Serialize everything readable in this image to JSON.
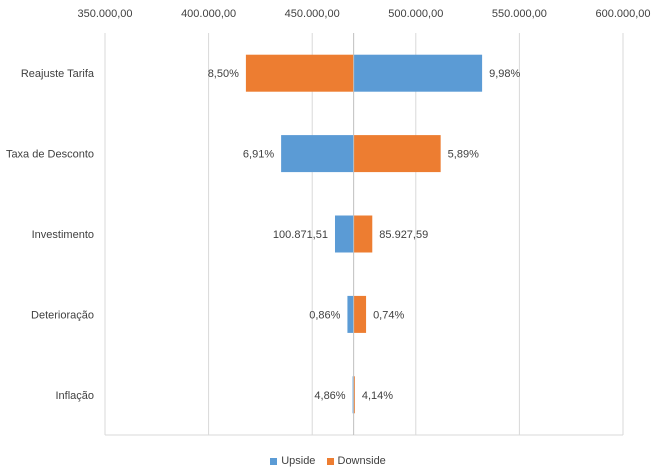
{
  "chart_data": {
    "type": "bar",
    "orientation": "horizontal",
    "subtype": "tornado",
    "base_value": 470000,
    "xlim": [
      350000,
      600000
    ],
    "x_ticks": [
      350000,
      400000,
      450000,
      500000,
      550000,
      600000
    ],
    "x_tick_labels": [
      "350.000,00",
      "400.000,00",
      "450.000,00",
      "500.000,00",
      "550.000,00",
      "600.000,00"
    ],
    "x_axis_position": "top",
    "grid": true,
    "legend_position": "bottom",
    "categories": [
      "Reajuste Tarifa",
      "Taxa de Desconto",
      "Investimento",
      "Deterioração",
      "Inflação"
    ],
    "series": [
      {
        "name": "Upside",
        "color": "#5B9BD5",
        "values": [
          532000,
          435000,
          461000,
          467000,
          469500
        ],
        "data_labels": [
          "9,98%",
          "6,91%",
          "100.871,51",
          "0,86%",
          "4,86%"
        ]
      },
      {
        "name": "Downside",
        "color": "#ED7D31",
        "values": [
          418000,
          512000,
          479000,
          476000,
          470600
        ],
        "data_labels": [
          "8,50%",
          "5,89%",
          "85.927,59",
          "0,74%",
          "4,14%"
        ]
      }
    ]
  }
}
